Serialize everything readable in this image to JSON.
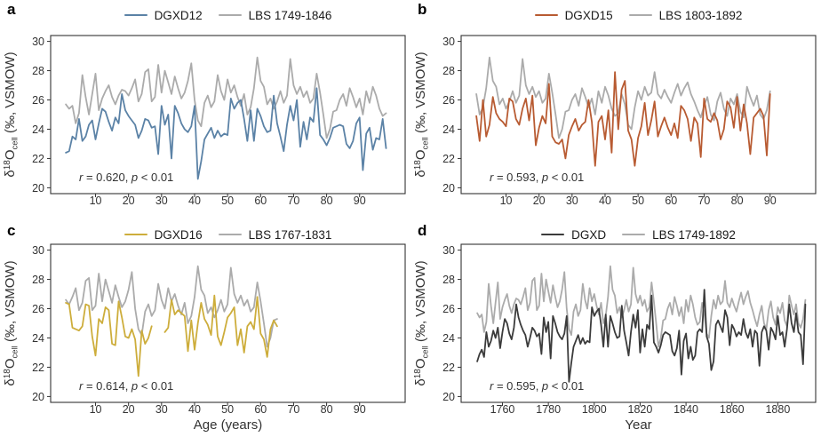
{
  "figure": {
    "background": "#ffffff",
    "colors": {
      "DGXD12": "#5B82A6",
      "DGXD15": "#B85B32",
      "DGXD16": "#CDAD3B",
      "DGXD": "#3B3B3B",
      "LBS": "#ABABAB",
      "axis": "#333333",
      "tick_label": "#404040",
      "stats_text": "#1a1a1a"
    }
  },
  "chart_data": {
    "type": "line",
    "y_axis": {
      "label_parts": {
        "delta": "δ",
        "sup": "18",
        "o": "O",
        "sub": "cell",
        "rest": " (‰, VSMOW)"
      },
      "ticks": [
        20,
        22,
        24,
        26,
        28,
        30
      ],
      "domain": [
        19.6,
        30.4
      ]
    },
    "lbs_master": {
      "start_year": 1749,
      "end_year": 1892,
      "values": [
        25.7,
        25.4,
        25.6,
        24.4,
        25.1,
        27.7,
        26.2,
        25.0,
        26.4,
        27.8,
        25.3,
        26.1,
        26.6,
        27.0,
        26.2,
        25.7,
        26.3,
        26.7,
        26.6,
        26.3,
        26.8,
        27.4,
        25.9,
        26.4,
        27.9,
        28.1,
        25.9,
        26.2,
        28.4,
        26.5,
        28.0,
        27.2,
        26.4,
        27.6,
        26.8,
        26.1,
        26.5,
        27.3,
        28.5,
        26.0,
        24.6,
        24.2,
        25.8,
        26.3,
        25.5,
        25.9,
        27.7,
        26.6,
        26.0,
        27.4,
        26.5,
        27.0,
        26.2,
        25.6,
        26.4,
        25.0,
        25.5,
        26.8,
        28.9,
        27.3,
        26.9,
        25.7,
        26.1,
        25.4,
        25.9,
        26.6,
        25.8,
        26.3,
        28.8,
        27.0,
        26.4,
        26.9,
        26.2,
        26.6,
        25.8,
        26.1,
        27.8,
        26.5,
        25.0,
        23.4,
        24.0,
        25.2,
        25.3,
        26.0,
        26.4,
        25.6,
        26.8,
        26.2,
        25.5,
        26.1,
        25.0,
        26.6,
        25.8,
        26.9,
        26.3,
        25.4,
        24.9,
        25.1,
        26.4,
        25.7,
        24.3,
        24.0,
        25.5,
        26.6,
        26.0,
        26.9,
        26.3,
        26.5,
        27.9,
        26.4,
        26.1,
        26.7,
        26.2,
        25.8,
        26.5,
        27.1,
        26.3,
        26.8,
        27.2,
        26.4,
        25.9,
        25.3,
        24.8,
        25.6,
        26.2,
        25.0,
        24.6,
        25.9,
        26.5,
        25.4,
        24.9,
        26.1,
        25.7,
        26.4,
        25.2,
        24.8,
        26.9,
        26.2,
        25.6,
        26.3,
        25.0,
        24.7,
        25.3,
        26.6
      ]
    },
    "panels": [
      {
        "letter": "a",
        "legend": [
          {
            "label": "DGXD12",
            "color": "DGXD12"
          },
          {
            "label": "LBS 1749-1846",
            "color": "LBS"
          }
        ],
        "stats": {
          "r_symbol": "r",
          "r_value": "0.620",
          "p_symbol": "p",
          "p_value": "< 0.01"
        },
        "x_domain": [
          -3.6,
          103.8
        ],
        "x_ticks": [
          10,
          20,
          30,
          40,
          50,
          60,
          70,
          80,
          90
        ],
        "x_label": null,
        "main_series": {
          "name": "DGXD12",
          "color": "DGXD12",
          "x_start": 1,
          "x_mode": "age",
          "values": [
            22.4,
            22.5,
            23.5,
            23.3,
            24.7,
            23.2,
            23.5,
            24.3,
            24.6,
            23.3,
            24.4,
            25.4,
            25.2,
            24.5,
            23.9,
            24.8,
            24.4,
            26.4,
            25.3,
            24.9,
            24.6,
            24.3,
            23.4,
            23.9,
            24.7,
            24.6,
            24.1,
            24.2,
            22.3,
            25.6,
            24.3,
            25.0,
            22.0,
            25.6,
            25.1,
            24.4,
            24.0,
            23.8,
            24.2,
            25.6,
            20.6,
            21.8,
            23.3,
            23.7,
            24.1,
            23.4,
            23.9,
            23.5,
            23.7,
            23.6,
            26.1,
            25.4,
            25.8,
            26.0,
            24.7,
            23.2,
            25.3,
            23.2,
            25.4,
            24.9,
            24.2,
            23.8,
            23.9,
            26.3,
            24.4,
            23.5,
            22.5,
            24.3,
            25.6,
            24.6,
            26.0,
            22.8,
            24.5,
            23.3,
            24.8,
            24.5,
            26.8,
            23.6,
            23.3,
            22.9,
            23.4,
            24.1,
            24.2,
            24.3,
            24.2,
            23.0,
            22.7,
            23.2,
            24.4,
            24.8,
            21.2,
            23.7,
            24.1,
            22.6,
            23.4,
            23.3,
            24.7,
            22.7
          ]
        },
        "lbs_series": {
          "name": "LBS 1749-1846",
          "color": "LBS",
          "from": 1749,
          "to": 1846,
          "x_mode": "age"
        }
      },
      {
        "letter": "b",
        "legend": [
          {
            "label": "DGXD15",
            "color": "DGXD15"
          },
          {
            "label": "LBS 1803-1892",
            "color": "LBS"
          }
        ],
        "stats": {
          "r_symbol": "r",
          "r_value": "0.593",
          "p_symbol": "p",
          "p_value": "< 0.01"
        },
        "x_domain": [
          -3.6,
          103.8
        ],
        "x_ticks": [
          10,
          20,
          30,
          40,
          50,
          60,
          70,
          80,
          90
        ],
        "x_label": null,
        "main_series": {
          "name": "DGXD15",
          "color": "DGXD15",
          "x_start": 1,
          "x_mode": "age",
          "values": [
            24.9,
            23.2,
            26.0,
            23.5,
            24.3,
            26.2,
            25.1,
            24.7,
            24.5,
            24.2,
            26.1,
            25.9,
            24.7,
            24.3,
            25.4,
            26.1,
            24.6,
            26.3,
            22.9,
            24.1,
            24.9,
            24.4,
            27.1,
            23.5,
            23.1,
            23.0,
            23.3,
            22.0,
            23.6,
            24.2,
            24.7,
            23.9,
            24.3,
            24.5,
            26.0,
            24.5,
            21.5,
            24.5,
            24.9,
            23.3,
            25.3,
            22.4,
            27.9,
            24.0,
            26.7,
            27.3,
            23.9,
            23.3,
            21.5,
            23.4,
            24.2,
            25.8,
            23.6,
            24.6,
            25.9,
            23.5,
            24.2,
            24.8,
            24.1,
            23.6,
            24.4,
            23.4,
            25.6,
            25.3,
            24.7,
            23.2,
            24.8,
            24.4,
            22.1,
            26.1,
            24.7,
            24.5,
            25.1,
            24.6,
            23.3,
            24.0,
            25.9,
            25.5,
            24.1,
            26.2,
            23.9,
            25.7,
            24.4,
            22.3,
            24.8,
            25.1,
            25.4,
            24.9,
            22.2,
            26.4
          ]
        },
        "lbs_series": {
          "name": "LBS 1803-1892",
          "color": "LBS",
          "from": 1803,
          "to": 1892,
          "x_mode": "age"
        }
      },
      {
        "letter": "c",
        "legend": [
          {
            "label": "DGXD16",
            "color": "DGXD16"
          },
          {
            "label": "LBS 1767-1831",
            "color": "LBS"
          }
        ],
        "stats": {
          "r_symbol": "r",
          "r_value": "0.614",
          "p_symbol": "p",
          "p_value": "< 0.01"
        },
        "x_domain": [
          -3.6,
          103.8
        ],
        "x_ticks": [
          10,
          20,
          30,
          40,
          50,
          60,
          70,
          80,
          90
        ],
        "x_label": "Age (years)",
        "main_series": {
          "name": "DGXD16",
          "color": "DGXD16",
          "x_start": 1,
          "x_mode": "age",
          "values": [
            26.4,
            26.3,
            24.7,
            24.6,
            24.5,
            24.8,
            26.3,
            26.2,
            24.1,
            22.8,
            25.3,
            25.0,
            26.1,
            25.9,
            23.6,
            23.5,
            26.5,
            25.4,
            24.1,
            24.0,
            24.6,
            23.9,
            21.4,
            24.5,
            23.6,
            24.0,
            24.8,
            null,
            null,
            null,
            24.4,
            24.7,
            26.6,
            25.6,
            25.9,
            25.7,
            25.5,
            23.1,
            25.2,
            23.2,
            25.0,
            26.4,
            25.3,
            24.9,
            24.2,
            26.9,
            24.1,
            23.5,
            24.4,
            25.4,
            25.7,
            26.1,
            23.5,
            24.6,
            23.0,
            24.8,
            25.1,
            24.6,
            26.8,
            24.3,
            23.9,
            22.7,
            24.6,
            25.2,
            24.8
          ]
        },
        "lbs_series": {
          "name": "LBS 1767-1831",
          "color": "LBS",
          "from": 1767,
          "to": 1831,
          "x_mode": "age"
        }
      },
      {
        "letter": "d",
        "legend": [
          {
            "label": "DGXD",
            "color": "DGXD"
          },
          {
            "label": "LBS 1749-1892",
            "color": "LBS"
          }
        ],
        "stats": {
          "r_symbol": "r",
          "r_value": "0.595",
          "p_symbol": "p",
          "p_value": "< 0.01"
        },
        "x_domain": [
          1742,
          1896.5
        ],
        "x_ticks": [
          1760,
          1780,
          1800,
          1820,
          1840,
          1860,
          1880
        ],
        "x_label": "Year",
        "main_series": {
          "name": "DGXD",
          "color": "DGXD",
          "x_start": 1749,
          "x_mode": "year",
          "values": [
            22.4,
            22.9,
            23.2,
            22.7,
            24.4,
            23.4,
            23.8,
            24.5,
            24.0,
            24.7,
            23.3,
            24.4,
            25.3,
            25.0,
            24.3,
            23.9,
            24.7,
            26.3,
            25.4,
            24.9,
            24.5,
            24.2,
            23.4,
            24.0,
            24.7,
            24.5,
            24.1,
            24.3,
            22.9,
            25.4,
            24.4,
            25.1,
            22.6,
            25.5,
            25.0,
            24.4,
            24.1,
            23.9,
            24.3,
            25.5,
            21.0,
            22.3,
            23.4,
            23.8,
            24.2,
            23.6,
            24.0,
            23.6,
            23.8,
            23.7,
            26.1,
            25.5,
            25.8,
            26.0,
            24.9,
            23.4,
            25.6,
            23.4,
            25.5,
            25.0,
            24.4,
            24.0,
            24.1,
            26.2,
            24.5,
            23.7,
            22.8,
            24.4,
            25.6,
            24.7,
            25.9,
            23.0,
            24.6,
            23.4,
            24.9,
            24.6,
            26.9,
            23.7,
            23.4,
            23.0,
            23.5,
            24.2,
            24.4,
            24.3,
            24.2,
            23.1,
            22.8,
            23.3,
            24.5,
            21.5,
            23.8,
            24.3,
            22.6,
            23.4,
            22.5,
            22.8,
            24.4,
            24.6,
            24.4,
            27.3,
            24.1,
            23.6,
            21.8,
            22.4,
            24.9,
            25.2,
            24.8,
            24.4,
            25.9,
            25.4,
            23.5,
            24.9,
            24.6,
            24.1,
            24.4,
            24.2,
            25.3,
            24.4,
            24.0,
            24.6,
            23.4,
            24.5,
            24.3,
            22.1,
            24.4,
            24.8,
            24.5,
            23.2,
            24.7,
            24.4,
            23.9,
            25.5,
            24.2,
            24.4,
            23.4,
            24.6,
            26.3,
            25.0,
            24.4,
            25.7,
            24.4,
            24.2,
            22.2,
            26.3
          ]
        },
        "lbs_series": {
          "name": "LBS 1749-1892",
          "color": "LBS",
          "from": 1749,
          "to": 1892,
          "x_mode": "year"
        }
      }
    ]
  }
}
